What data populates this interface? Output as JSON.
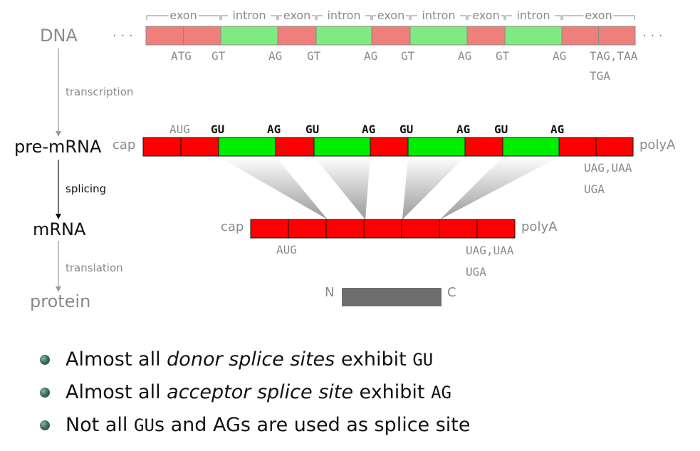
{
  "colors": {
    "exon_faded": "#ef7f7b",
    "intron_faded": "#7fea7f",
    "exon": "#ff0000",
    "intron": "#00ee00",
    "label_gray": "#8a8a8a",
    "protein_bar": "#6e6e6e"
  },
  "levels": {
    "dna": "DNA",
    "pre_mrna": "pre-mRNA",
    "mrna": "mRNA",
    "protein": "protein"
  },
  "processes": {
    "transcription": "transcription",
    "splicing": "splicing",
    "translation": "translation"
  },
  "dna": {
    "ellipsis": "· · ·",
    "segment_labels": [
      "exon",
      "intron",
      "exon",
      "intron",
      "exon",
      "intron",
      "exon",
      "intron",
      "exon"
    ],
    "site_labels": [
      "ATG",
      "GT",
      "AG",
      "GT",
      "AG",
      "GT",
      "AG",
      "GT",
      "AG"
    ],
    "stop_line1": "TAG,TAA",
    "stop_line2": "TGA"
  },
  "pre_mrna": {
    "cap": "cap",
    "polya": "polyA",
    "start": "AUG",
    "site_labels": [
      "GU",
      "AG",
      "GU",
      "AG",
      "GU",
      "AG",
      "GU",
      "AG"
    ],
    "stop_line1": "UAG,UAA",
    "stop_line2": "UGA"
  },
  "mrna": {
    "cap": "cap",
    "polya": "polyA",
    "start": "AUG",
    "stop_line1": "UAG,UAA",
    "stop_line2": "UGA"
  },
  "protein": {
    "n_label": "N",
    "c_label": "C"
  },
  "bullets": [
    {
      "pre": "Almost all ",
      "em": "donor splice sites",
      "mid": " exhibit ",
      "code": "GU",
      "post": ""
    },
    {
      "pre": "Almost all ",
      "em": "acceptor splice site",
      "mid": " exhibit ",
      "code": "AG",
      "post": ""
    },
    {
      "pre": "Not all ",
      "em": "",
      "mid": "",
      "code": "GU",
      "post": "s and AGs are used as splice site"
    }
  ]
}
